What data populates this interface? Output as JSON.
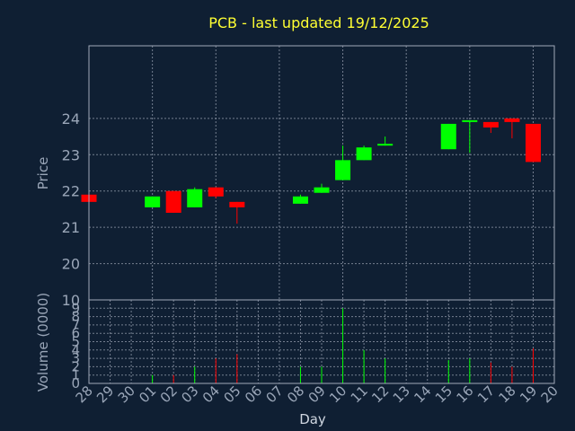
{
  "chart_data": {
    "type": "candlestick",
    "title": "PCB - last updated 19/12/2025",
    "xlabel": "Day",
    "ylabel": "Price",
    "volume_label": "Volume (0000)",
    "x_ticks": [
      "28",
      "29",
      "30",
      "01",
      "02",
      "03",
      "04",
      "05",
      "06",
      "07",
      "08",
      "09",
      "10",
      "11",
      "12",
      "13",
      "14",
      "15",
      "16",
      "17",
      "18",
      "19",
      "20"
    ],
    "price_ticks": [
      "10",
      "20",
      "21",
      "22",
      "23",
      "24"
    ],
    "volume_ticks": [
      "0",
      "1",
      "2",
      "3",
      "4",
      "5",
      "6",
      "7",
      "8",
      "9"
    ],
    "price_range": [
      19.0,
      26.0
    ],
    "volume_range": [
      0,
      10
    ],
    "grid": true,
    "colors": {
      "up": "#00ff00",
      "down": "#ff0000",
      "grid": "#a0a8b8",
      "background": "#0f1f33",
      "title": "#ffff33",
      "axis": "#9aa6b8"
    },
    "candles": [
      {
        "day": "28",
        "open": 21.9,
        "high": 21.9,
        "low": 21.7,
        "close": 21.7,
        "volume": 0.0
      },
      {
        "day": "01",
        "open": 21.55,
        "high": 21.85,
        "low": 21.55,
        "close": 21.85,
        "volume": 1.0
      },
      {
        "day": "02",
        "open": 22.0,
        "high": 22.0,
        "low": 21.4,
        "close": 21.4,
        "volume": 1.0
      },
      {
        "day": "03",
        "open": 21.55,
        "high": 22.1,
        "low": 21.55,
        "close": 22.05,
        "volume": 2.0
      },
      {
        "day": "04",
        "open": 22.1,
        "high": 22.1,
        "low": 21.8,
        "close": 21.85,
        "volume": 3.0
      },
      {
        "day": "05",
        "open": 21.7,
        "high": 21.7,
        "low": 21.1,
        "close": 21.55,
        "volume": 3.5
      },
      {
        "day": "08",
        "open": 21.65,
        "high": 21.9,
        "low": 21.65,
        "close": 21.85,
        "volume": 2.0
      },
      {
        "day": "09",
        "open": 21.95,
        "high": 22.2,
        "low": 21.95,
        "close": 22.1,
        "volume": 2.0
      },
      {
        "day": "10",
        "open": 22.3,
        "high": 23.25,
        "low": 22.3,
        "close": 22.85,
        "volume": 9.0
      },
      {
        "day": "11",
        "open": 22.85,
        "high": 23.25,
        "low": 22.85,
        "close": 23.2,
        "volume": 4.0
      },
      {
        "day": "12",
        "open": 23.3,
        "high": 23.5,
        "low": 23.25,
        "close": 23.3,
        "volume": 3.0
      },
      {
        "day": "15",
        "open": 23.15,
        "high": 23.85,
        "low": 23.15,
        "close": 23.85,
        "volume": 2.8
      },
      {
        "day": "16",
        "open": 23.9,
        "high": 23.95,
        "low": 23.05,
        "close": 23.95,
        "volume": 3.0
      },
      {
        "day": "17",
        "open": 23.9,
        "high": 23.9,
        "low": 23.6,
        "close": 23.75,
        "volume": 2.5
      },
      {
        "day": "18",
        "open": 24.0,
        "high": 24.0,
        "low": 23.45,
        "close": 23.9,
        "volume": 2.0
      },
      {
        "day": "19",
        "open": 23.85,
        "high": 23.85,
        "low": 22.8,
        "close": 22.8,
        "volume": 4.2
      }
    ]
  }
}
